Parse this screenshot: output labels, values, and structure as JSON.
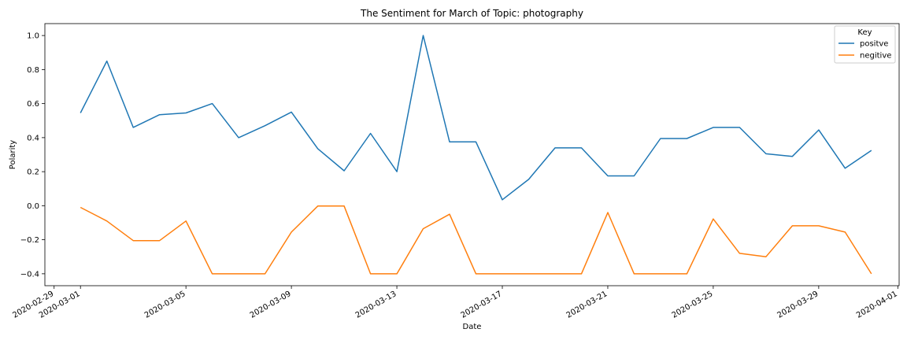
{
  "chart_data": {
    "type": "line",
    "title": "The Sentiment for March of Topic: photography",
    "xlabel": "Date",
    "ylabel": "Polarity",
    "x": [
      "2020-03-01",
      "2020-03-02",
      "2020-03-03",
      "2020-03-04",
      "2020-03-05",
      "2020-03-06",
      "2020-03-07",
      "2020-03-08",
      "2020-03-09",
      "2020-03-10",
      "2020-03-11",
      "2020-03-12",
      "2020-03-13",
      "2020-03-14",
      "2020-03-15",
      "2020-03-16",
      "2020-03-17",
      "2020-03-18",
      "2020-03-19",
      "2020-03-20",
      "2020-03-21",
      "2020-03-22",
      "2020-03-23",
      "2020-03-24",
      "2020-03-25",
      "2020-03-26",
      "2020-03-27",
      "2020-03-28",
      "2020-03-29",
      "2020-03-30",
      "2020-03-31"
    ],
    "series": [
      {
        "name": "positve",
        "color": "#1f77b4",
        "values": [
          0.545,
          0.85,
          0.46,
          0.535,
          0.545,
          0.6,
          0.4,
          0.47,
          0.55,
          0.335,
          0.205,
          0.425,
          0.2,
          1.0,
          0.375,
          0.375,
          0.035,
          0.155,
          0.34,
          0.34,
          0.175,
          0.175,
          0.395,
          0.395,
          0.46,
          0.46,
          0.305,
          0.29,
          0.445,
          0.22,
          0.325
        ]
      },
      {
        "name": "negitive",
        "color": "#ff7f0e",
        "values": [
          -0.01,
          -0.09,
          -0.205,
          -0.205,
          -0.09,
          -0.4,
          -0.4,
          -0.4,
          -0.155,
          -0.002,
          -0.002,
          -0.4,
          -0.4,
          -0.135,
          -0.05,
          -0.4,
          -0.4,
          -0.4,
          -0.4,
          -0.4,
          -0.04,
          -0.4,
          -0.4,
          -0.4,
          -0.078,
          -0.28,
          -0.3,
          -0.118,
          -0.118,
          -0.155,
          -0.4
        ]
      }
    ],
    "xlim": [
      "2020-02-29",
      "2020-04-01"
    ],
    "ylim": [
      -0.47,
      1.07
    ],
    "x_ticks": [
      "2020-02-29",
      "2020-03-01",
      "2020-03-05",
      "2020-03-09",
      "2020-03-13",
      "2020-03-17",
      "2020-03-21",
      "2020-03-25",
      "2020-03-29",
      "2020-04-01"
    ],
    "y_ticks": [
      -0.4,
      -0.2,
      0.0,
      0.2,
      0.4,
      0.6,
      0.8,
      1.0
    ],
    "y_tick_labels": [
      "−0.4",
      "−0.2",
      "0.0",
      "0.2",
      "0.4",
      "0.6",
      "0.8",
      "1.0"
    ],
    "grid": false,
    "legend": {
      "title": "Key",
      "position": "top-right"
    }
  }
}
